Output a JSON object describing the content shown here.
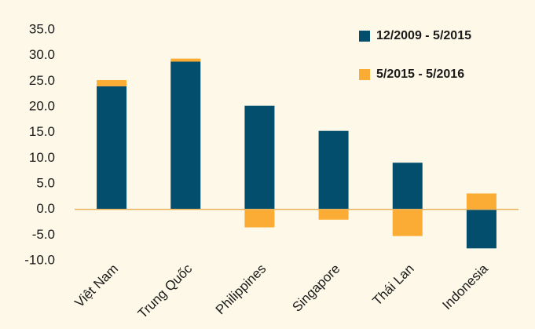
{
  "chart_data": {
    "type": "stacked_bar",
    "categories": [
      "Việt Nam",
      "Trung Quốc",
      "Philippines",
      "Singapore",
      "Thái Lan",
      "Indonesia"
    ],
    "series": [
      {
        "name": "12/2009 - 5/2015",
        "color": "#034e6d",
        "values": [
          24.0,
          28.8,
          20.2,
          15.3,
          9.1,
          -7.6
        ]
      },
      {
        "name": "5/2015 - 5/2016",
        "color": "#fbac34",
        "values": [
          1.2,
          0.6,
          -3.5,
          -2.0,
          -5.2,
          3.1
        ]
      }
    ],
    "ylim": [
      -10,
      35
    ],
    "yticks": [
      {
        "value": -10,
        "label": "-10.0"
      },
      {
        "value": -5,
        "label": "-5.0"
      },
      {
        "value": 0,
        "label": "0.0"
      },
      {
        "value": 5,
        "label": "5.0"
      },
      {
        "value": 10,
        "label": "10.0"
      },
      {
        "value": 15,
        "label": "15.0"
      },
      {
        "value": 20,
        "label": "20.0"
      },
      {
        "value": 25,
        "label": "25.0"
      },
      {
        "value": 30,
        "label": "30.0"
      },
      {
        "value": 35,
        "label": "35.0"
      }
    ],
    "legend": "upper right",
    "grid": false
  }
}
